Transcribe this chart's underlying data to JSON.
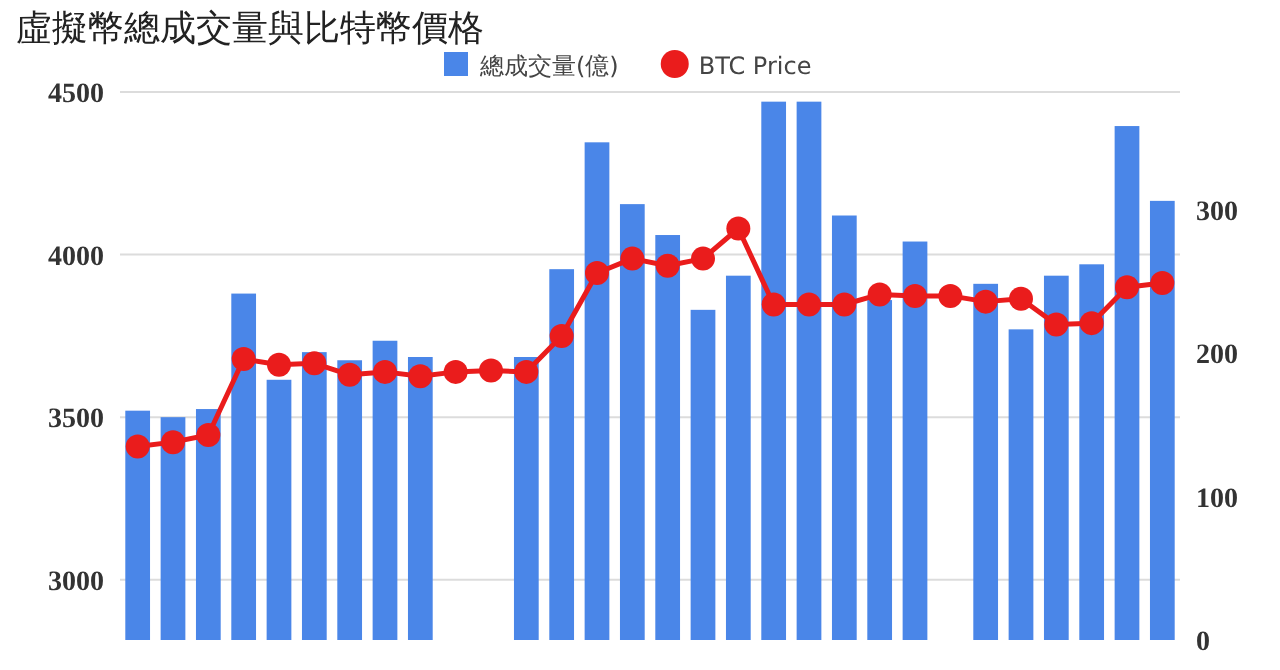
{
  "chart_data": {
    "type": "bar",
    "title": "虛擬幣總成交量與比特幣價格",
    "categories": [
      null,
      null,
      null,
      null,
      null,
      null,
      null,
      null,
      null,
      null,
      null,
      null,
      null,
      null,
      null,
      null,
      null,
      null,
      null,
      null,
      null,
      null,
      null,
      null,
      null,
      null,
      null,
      null,
      null,
      null
    ],
    "series": [
      {
        "name": "總成交量(億)",
        "color": "#4a86e8",
        "values": [
          3520,
          3500,
          3525,
          3880,
          3615,
          3700,
          3675,
          3735,
          3685,
          null,
          null,
          3685,
          3955,
          4345,
          4155,
          4060,
          3830,
          3935,
          4470,
          4470,
          4120,
          3860,
          4040,
          null,
          3910,
          3770,
          3935,
          3970,
          4395,
          4165
        ]
      },
      {
        "name": "BTC Price",
        "type": "line",
        "axis": "y2",
        "color": "#ea1c1c",
        "marker": "circle",
        "values": [
          135,
          138,
          143,
          196,
          192,
          193,
          185,
          187,
          184,
          187,
          188,
          187,
          212,
          256,
          266,
          261,
          266,
          287,
          234,
          234,
          234,
          241,
          240,
          240,
          236,
          238,
          220,
          221,
          246,
          249
        ]
      }
    ],
    "ylim": [
      2815,
      4512
    ],
    "yticks": [
      3000,
      3500,
      4000,
      4500
    ],
    "y2lim": [
      0,
      385
    ],
    "y2ticks": [
      0,
      100,
      200,
      300
    ],
    "grid": "y",
    "legend": "top"
  }
}
